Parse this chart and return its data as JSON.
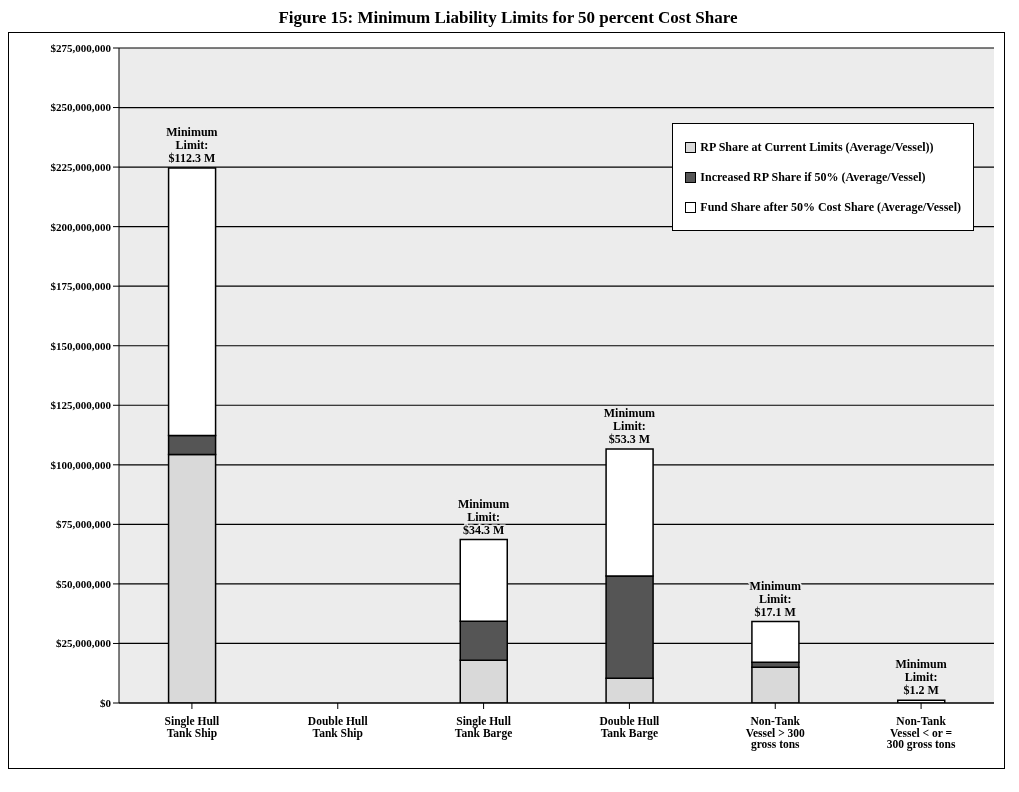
{
  "chart_data": {
    "type": "bar",
    "stacked": true,
    "title": "Figure 15: Minimum Liability Limits for 50 percent Cost Share",
    "categories": [
      "Single Hull Tank Ship",
      "Double Hull Tank Ship",
      "Single Hull Tank Barge",
      "Double Hull Tank Barge",
      "Non-Tank Vessel > 300 gross tons",
      "Non-Tank Vessel < or = 300 gross tons"
    ],
    "series": [
      {
        "name": "RP Share at Current Limits (Average/Vessel))",
        "color": "#d9d9d9",
        "values": [
          104300000,
          null,
          18000000,
          10400000,
          15000000,
          null
        ]
      },
      {
        "name": "Increased RP Share if 50% (Average/Vessel)",
        "color": "#555555",
        "values": [
          8000000,
          null,
          16300000,
          42900000,
          2100000,
          null
        ]
      },
      {
        "name": "Fund Share after 50% Cost Share (Average/Vessel)",
        "color": "#ffffff",
        "values": [
          112300000,
          null,
          34300000,
          53300000,
          17100000,
          1200000
        ]
      }
    ],
    "ylim": [
      0,
      275000000
    ],
    "yticks": [
      {
        "value": 0,
        "label": "$0"
      },
      {
        "value": 25000000,
        "label": "$25,000,000"
      },
      {
        "value": 50000000,
        "label": "$50,000,000"
      },
      {
        "value": 75000000,
        "label": "$75,000,000"
      },
      {
        "value": 100000000,
        "label": "$100,000,000"
      },
      {
        "value": 125000000,
        "label": "$125,000,000"
      },
      {
        "value": 150000000,
        "label": "$150,000,000"
      },
      {
        "value": 175000000,
        "label": "$175,000,000"
      },
      {
        "value": 200000000,
        "label": "$200,000,000"
      },
      {
        "value": 225000000,
        "label": "$225,000,000"
      },
      {
        "value": 250000000,
        "label": "$250,000,000"
      },
      {
        "value": 275000000,
        "label": "$275,000,000"
      }
    ],
    "grid": "y",
    "legend": "top right",
    "annotations": [
      {
        "text": "Minimum Limit: $112.3 M",
        "x": "Single Hull Tank Ship",
        "y": 224600000
      },
      {
        "text": "Minimum Limit: $34.3 M",
        "x": "Single Hull Tank Barge",
        "y": 68600000
      },
      {
        "text": "Minimum Limit: $53.3 M",
        "x": "Double Hull Tank Barge",
        "y": 106600000
      },
      {
        "text": "Minimum Limit: $17.1 M",
        "x": "Non-Tank Vessel > 300 gross tons",
        "y": 34200000
      },
      {
        "text": "Minimum Limit: $1.2 M",
        "x": "Non-Tank Vessel < or = 300 gross tons",
        "y": 1200000
      }
    ]
  }
}
